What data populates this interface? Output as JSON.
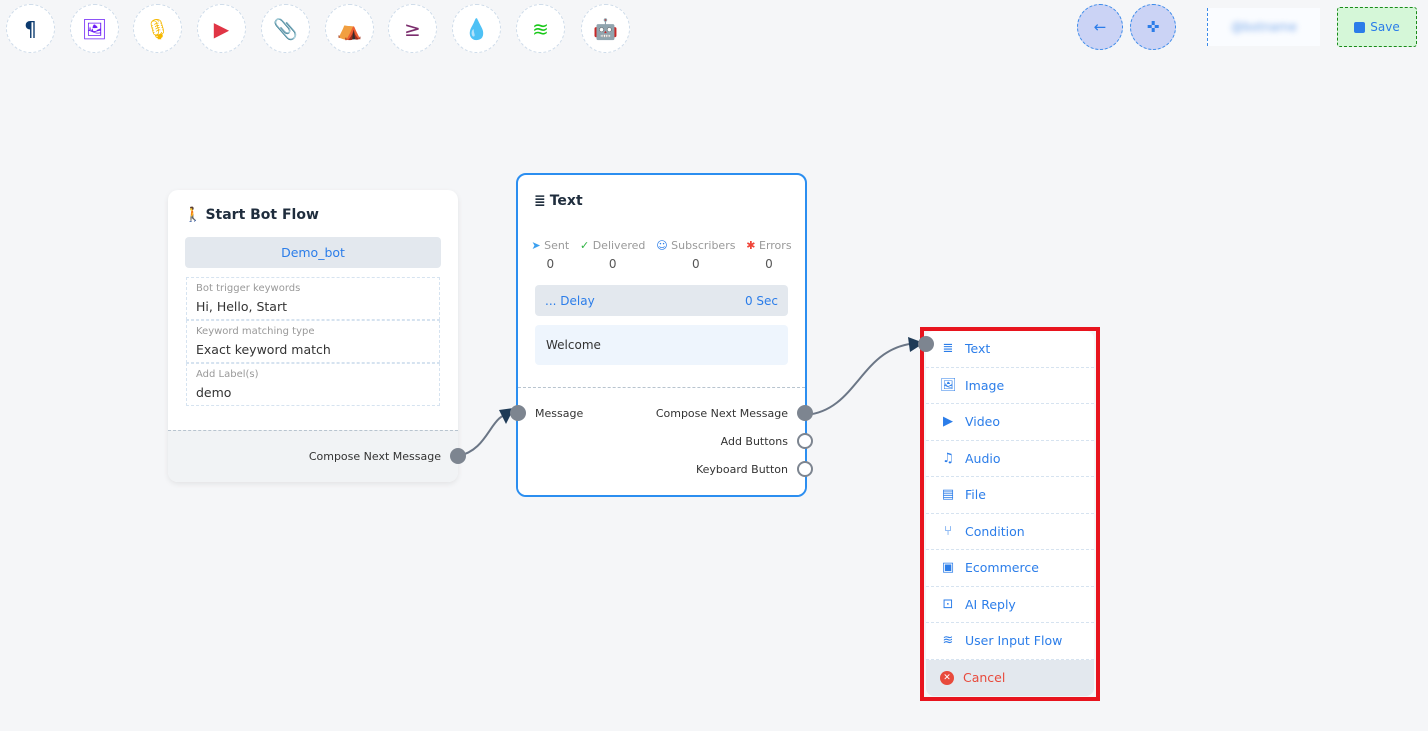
{
  "toolbar": {
    "items": [
      {
        "name": "paragraph-icon",
        "glyph": "¶",
        "color": "#0b3a6e"
      },
      {
        "name": "image-icon",
        "glyph": "🖼",
        "color": "#6a1bf5"
      },
      {
        "name": "microphone-icon",
        "glyph": "🎙",
        "color": "#f5b800"
      },
      {
        "name": "youtube-icon",
        "glyph": "▶",
        "color": "#e03545"
      },
      {
        "name": "paperclip-icon",
        "glyph": "📎",
        "color": "#1f9d3a"
      },
      {
        "name": "store-icon",
        "glyph": "⛺",
        "color": "#fd7e14"
      },
      {
        "name": "greater-equal-icon",
        "glyph": "≥",
        "color": "#7b2d6d"
      },
      {
        "name": "drop-icon",
        "glyph": "💧",
        "color": "#d0021b"
      },
      {
        "name": "stack-icon",
        "glyph": "≋",
        "color": "#18c818"
      },
      {
        "name": "robot-icon",
        "glyph": "🤖",
        "color": "#1a1ae8"
      }
    ]
  },
  "header": {
    "back_icon": "←",
    "fit_icon": "✜",
    "blurred_label": "@botname",
    "save_label": "Save"
  },
  "start_node": {
    "title": "Start Bot Flow",
    "bot_name": "Demo_bot",
    "fields": [
      {
        "label": "Bot trigger keywords",
        "value": "Hi, Hello, Start"
      },
      {
        "label": "Keyword matching type",
        "value": "Exact keyword match"
      },
      {
        "label": "Add Label(s)",
        "value": "demo"
      }
    ],
    "output_label": "Compose Next Message"
  },
  "text_node": {
    "title": "Text",
    "stats": [
      {
        "label": "Sent",
        "value": "0",
        "color": "#3ba0f0",
        "glyph": "➤"
      },
      {
        "label": "Delivered",
        "value": "0",
        "color": "#2fb344",
        "glyph": "✓"
      },
      {
        "label": "Subscribers",
        "value": "0",
        "color": "#2b7de9",
        "glyph": "☺"
      },
      {
        "label": "Errors",
        "value": "0",
        "color": "#f04438",
        "glyph": "✱"
      }
    ],
    "delay_label": "... Delay",
    "delay_value": "0 Sec",
    "message": "Welcome",
    "input_label": "Message",
    "outputs": [
      "Compose Next Message",
      "Add Buttons",
      "Keyboard Button"
    ]
  },
  "menu": {
    "items": [
      {
        "label": "Text",
        "icon": "≣",
        "name": "text"
      },
      {
        "label": "Image",
        "icon": "🖼",
        "name": "image"
      },
      {
        "label": "Video",
        "icon": "▶",
        "name": "video"
      },
      {
        "label": "Audio",
        "icon": "♫",
        "name": "audio"
      },
      {
        "label": "File",
        "icon": "▤",
        "name": "file"
      },
      {
        "label": "Condition",
        "icon": "⑂",
        "name": "condition"
      },
      {
        "label": "Ecommerce",
        "icon": "▣",
        "name": "ecommerce"
      },
      {
        "label": "AI Reply",
        "icon": "⊡",
        "name": "ai-reply"
      },
      {
        "label": "User Input Flow",
        "icon": "≋",
        "name": "user-input-flow"
      }
    ],
    "cancel_label": "Cancel",
    "cancel_color": "#e84a3c",
    "highlight_color": "#e8141e"
  }
}
